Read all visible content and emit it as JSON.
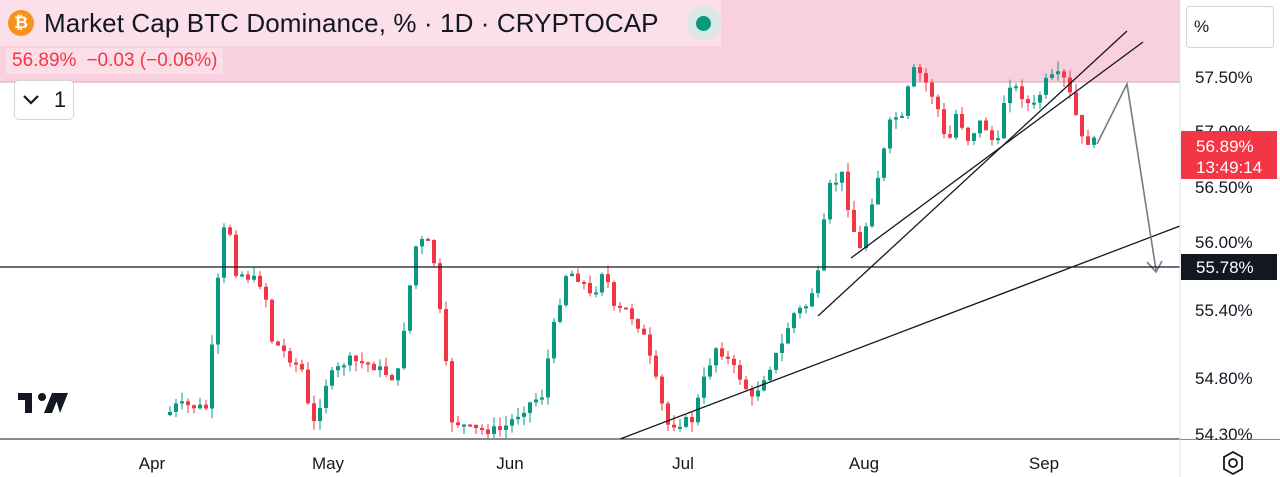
{
  "header": {
    "title": "Market Cap BTC Dominance, % · 1D · CRYPTOCAP",
    "coin_symbol": "₿",
    "last_value": "56.89%",
    "change": "−0.03 (−0.06%)"
  },
  "indicators_toggle": {
    "label": "1"
  },
  "price_axis": {
    "unit": "%",
    "current_tag": "56.89%",
    "countdown": "13:49:14",
    "level_tag": "55.78%"
  },
  "colors": {
    "up": "#089981",
    "down": "#f23645",
    "zone": "#f9d0dd",
    "text": "#131722"
  },
  "icons": [
    "bitcoin-icon",
    "status-dot-icon",
    "chevron-down-icon",
    "tradingview-logo-icon",
    "settings-gear-icon"
  ],
  "chart_data": {
    "type": "candlestick",
    "title": "Market Cap BTC Dominance, % · 1D · CRYPTOCAP",
    "y_ticks": [
      "57.50%",
      "57.00%",
      "56.50%",
      "56.00%",
      "55.40%",
      "54.80%",
      "54.30%"
    ],
    "x_ticks": [
      "Apr",
      "May",
      "Jun",
      "Jul",
      "Aug",
      "Sep"
    ],
    "ylim": [
      54.3,
      58.3
    ],
    "grid": false,
    "last_value": 56.89,
    "horizontal_level": 55.78,
    "resistance_zone": [
      57.48,
      58.3
    ],
    "approx_range_low": 54.3,
    "approx_range_high": 57.77
  }
}
